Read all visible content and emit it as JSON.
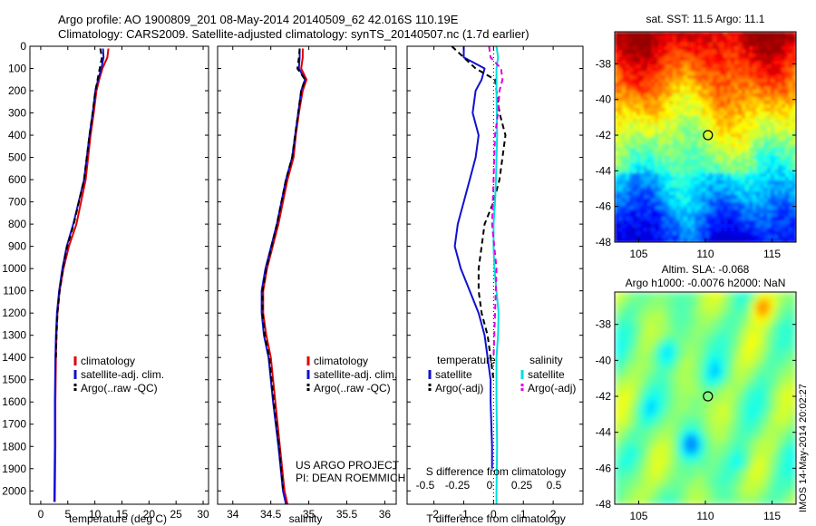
{
  "header": {
    "title_line1": "Argo profile: AO 1900809_201 08-May-2014 20140509_62 42.016S 110.19E",
    "title_line2": "Climatology: CARS2009. Satellite-adjusted climatology: synTS_20140507.nc (1.7d earlier)"
  },
  "timestamp": "IMOS 14-May-2014 20:02:27",
  "colors": {
    "red": "#e00000",
    "blue": "#1010d0",
    "black": "#000000",
    "cyan": "#00dede",
    "magenta": "#e000e0"
  },
  "chart_data": [
    {
      "id": "temperature",
      "type": "line",
      "xlabel": "temperature (deg C)",
      "xlim": [
        -2,
        31
      ],
      "xticks": [
        0,
        5,
        10,
        15,
        20,
        25,
        30
      ],
      "ylim": [
        0,
        2060
      ],
      "yticks": [
        0,
        100,
        200,
        300,
        400,
        500,
        600,
        700,
        800,
        900,
        1000,
        1100,
        1200,
        1300,
        1400,
        1500,
        1600,
        1700,
        1800,
        1900,
        2000
      ],
      "y_reversed": true,
      "legend": [
        "climatology",
        "satellite-adj. clim.",
        "Argo(..raw -QC)"
      ],
      "series": [
        {
          "name": "climatology",
          "color": "red",
          "dash": "",
          "x": [
            12.5,
            12.3,
            11.4,
            10.8,
            10.3,
            9.8,
            9.2,
            8.3,
            6.6,
            5.2,
            4.2,
            3.5,
            3.1,
            2.9,
            2.8,
            2.7,
            2.7,
            2.6
          ],
          "y": [
            10,
            50,
            100,
            150,
            200,
            300,
            400,
            600,
            800,
            900,
            1000,
            1100,
            1200,
            1300,
            1400,
            1600,
            1800,
            2050
          ]
        },
        {
          "name": "satellite-adj. clim.",
          "color": "blue",
          "dash": "",
          "x": [
            11.5,
            11.6,
            11.2,
            10.6,
            10.1,
            9.6,
            9.0,
            8.0,
            6.0,
            4.8,
            4.0,
            3.4,
            3.0,
            2.8,
            2.7,
            2.6,
            2.6,
            2.5
          ],
          "y": [
            10,
            50,
            100,
            150,
            200,
            300,
            400,
            600,
            800,
            900,
            1000,
            1100,
            1200,
            1300,
            1400,
            1600,
            1800,
            2050
          ]
        },
        {
          "name": "Argo(..raw -QC)",
          "color": "black",
          "dash": "6,4",
          "x": [
            11.0,
            11.3,
            10.9,
            10.5,
            10.1,
            9.6,
            9.0,
            8.0,
            6.1,
            4.9,
            4.1,
            3.5,
            3.1,
            2.9,
            2.8
          ],
          "y": [
            10,
            50,
            100,
            150,
            200,
            300,
            400,
            600,
            800,
            900,
            1000,
            1100,
            1200,
            1300,
            1400
          ]
        }
      ]
    },
    {
      "id": "salinity",
      "type": "line",
      "xlabel": "salinity",
      "xlim": [
        33.8,
        36.15
      ],
      "xticks": [
        34,
        34.5,
        35,
        35.5,
        36
      ],
      "ylim": [
        0,
        2060
      ],
      "y_reversed": true,
      "legend": [
        "climatology",
        "satellite-adj. clim.",
        "Argo(..raw -QC)"
      ],
      "annotation": [
        "US ARGO PROJECT",
        "PI: DEAN ROEMMICH"
      ],
      "series": [
        {
          "name": "climatology",
          "color": "red",
          "dash": "",
          "x": [
            34.92,
            34.92,
            34.9,
            34.97,
            34.92,
            34.87,
            34.83,
            34.8,
            34.72,
            34.6,
            34.45,
            34.4,
            34.4,
            34.44,
            34.5,
            34.56,
            34.62,
            34.68,
            34.72
          ],
          "y": [
            10,
            50,
            100,
            150,
            200,
            300,
            400,
            500,
            600,
            800,
            1000,
            1100,
            1200,
            1300,
            1400,
            1600,
            1800,
            2000,
            2060
          ]
        },
        {
          "name": "satellite-adj. clim.",
          "color": "blue",
          "dash": "",
          "x": [
            34.88,
            34.88,
            34.87,
            34.95,
            34.9,
            34.86,
            34.82,
            34.78,
            34.7,
            34.58,
            34.43,
            34.38,
            34.38,
            34.41,
            34.47,
            34.53,
            34.6,
            34.66,
            34.7
          ],
          "y": [
            10,
            50,
            100,
            150,
            200,
            300,
            400,
            500,
            600,
            800,
            1000,
            1100,
            1200,
            1300,
            1400,
            1600,
            1800,
            2000,
            2060
          ]
        },
        {
          "name": "Argo(..raw -QC)",
          "color": "black",
          "dash": "6,4",
          "x": [
            34.88,
            34.87,
            34.85,
            34.95,
            34.9,
            34.86,
            34.82,
            34.78,
            34.7,
            34.58,
            34.44,
            34.39,
            34.39,
            34.42,
            34.48,
            34.54,
            34.61,
            34.66
          ],
          "y": [
            10,
            50,
            100,
            150,
            200,
            300,
            400,
            500,
            600,
            800,
            1000,
            1100,
            1200,
            1300,
            1400,
            1600,
            1800,
            1990
          ]
        }
      ]
    },
    {
      "id": "difference",
      "type": "line",
      "xlabel": "T difference from climatology",
      "xlabel_top": "S difference from climatology",
      "xlim": [
        -2.9,
        3.0
      ],
      "xticks": [
        -2,
        -1,
        0,
        1,
        2
      ],
      "xticks_top": [
        "-0.5",
        "-0.25",
        "0",
        "0.25",
        "0.5"
      ],
      "ylim": [
        0,
        2060
      ],
      "y_reversed": true,
      "legend_titles": [
        "temperature",
        "salinity"
      ],
      "legend": [
        "satellite",
        "Argo(-adj)",
        "satellite",
        "Argo(-adj)"
      ],
      "series": [
        {
          "name": "temperature satellite",
          "color": "blue",
          "dash": "",
          "x": [
            -1.0,
            -1.0,
            -0.3,
            -0.4,
            -0.6,
            -0.7,
            -0.5,
            -0.6,
            -0.8,
            -1.0,
            -1.2,
            -1.3,
            -1.1,
            -0.8,
            -0.5,
            -0.3,
            -0.2,
            -0.1,
            -0.1,
            -0.05,
            -0.05
          ],
          "y": [
            0,
            50,
            100,
            150,
            200,
            300,
            400,
            500,
            600,
            700,
            800,
            900,
            1000,
            1100,
            1200,
            1300,
            1400,
            1500,
            1600,
            1800,
            1900
          ]
        },
        {
          "name": "temperature Argo(-adj)",
          "color": "black",
          "dash": "6,4",
          "x": [
            -1.4,
            -1.0,
            -0.6,
            0.05,
            0.1,
            0.2,
            0.4,
            0.3,
            0.2,
            0.0,
            -0.3,
            -0.4,
            -0.5,
            -0.5,
            -0.4,
            -0.2,
            -0.1,
            0.0
          ],
          "y": [
            0,
            50,
            100,
            150,
            200,
            300,
            400,
            500,
            600,
            700,
            800,
            900,
            1000,
            1100,
            1200,
            1300,
            1400,
            1500
          ]
        },
        {
          "name": "salinity satellite",
          "color": "cyan",
          "dash": "",
          "x": [
            0.1,
            0.15,
            0.1,
            0.1,
            0.1,
            0.12,
            0.08,
            0.05,
            0.0,
            0.0,
            0.03,
            0.1,
            0.17,
            0.15,
            0.1,
            0.1,
            0.12,
            0.1,
            0.1
          ],
          "y": [
            0,
            50,
            100,
            150,
            200,
            400,
            600,
            700,
            800,
            900,
            1000,
            1100,
            1200,
            1300,
            1400,
            1600,
            1800,
            2000,
            2060
          ]
        },
        {
          "name": "salinity Argo(-adj)",
          "color": "magenta",
          "dash": "6,4",
          "x": [
            -0.15,
            -0.1,
            0.25,
            0.3,
            0.2,
            0.15,
            0.05,
            0.0,
            -0.05,
            0.1,
            0.05,
            0.0
          ],
          "y": [
            0,
            50,
            100,
            150,
            200,
            300,
            400,
            600,
            800,
            1000,
            1200,
            1400
          ]
        }
      ]
    },
    {
      "id": "sst_map",
      "type": "heatmap",
      "title": "sat. SST: 11.5 Argo: 11.1",
      "xlim": [
        103.2,
        116.8
      ],
      "xticks": [
        105,
        110,
        115
      ],
      "ylim": [
        -48,
        -36.2
      ],
      "yticks": [
        -38,
        -40,
        -42,
        -44,
        -46,
        -48
      ],
      "marker": {
        "lon": 110.19,
        "lat": -42.0
      },
      "colormap": "jet"
    },
    {
      "id": "sla_map",
      "type": "heatmap",
      "title": "Altim. SLA: -0.068",
      "subtitle": "Argo h1000: -0.0076 h2000: NaN",
      "xlim": [
        103.2,
        116.8
      ],
      "xticks": [
        105,
        110,
        115
      ],
      "ylim": [
        -48,
        -36.2
      ],
      "yticks": [
        -38,
        -40,
        -42,
        -44,
        -46,
        -48
      ],
      "marker": {
        "lon": 110.19,
        "lat": -42.0
      },
      "colormap": "jet"
    }
  ]
}
